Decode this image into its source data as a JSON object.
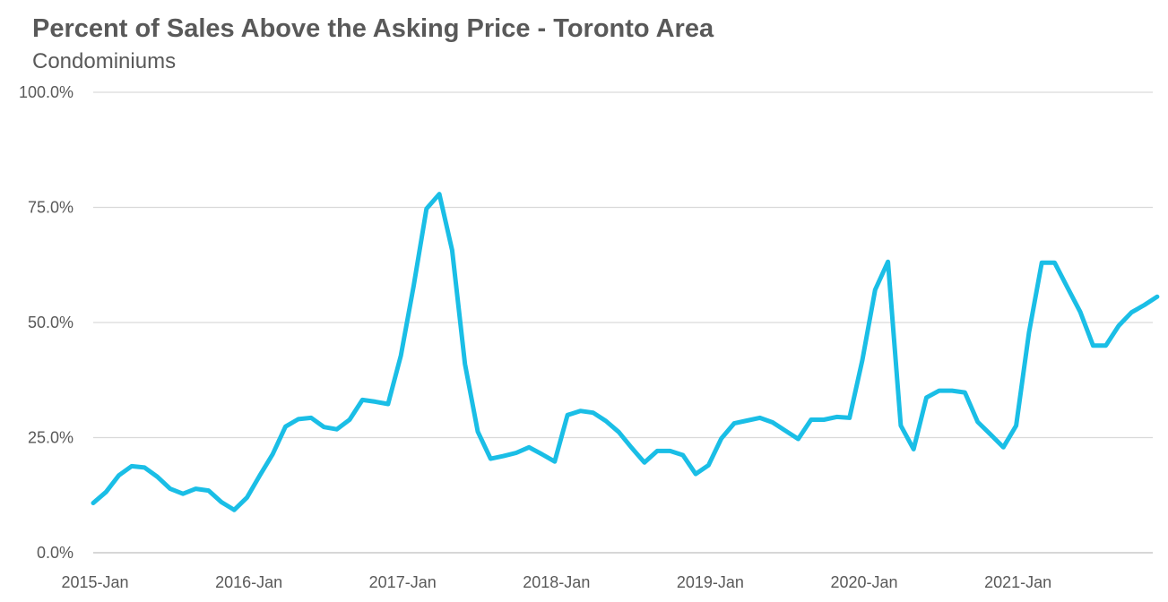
{
  "chart_data": {
    "type": "line",
    "title": "Percent of Sales Above the Asking Price - Toronto Area",
    "subtitle": "Condominiums",
    "xlabel": "",
    "ylabel": "",
    "ylim": [
      0,
      100
    ],
    "y_ticks": [
      "0.0%",
      "25.0%",
      "50.0%",
      "75.0%",
      "100.0%"
    ],
    "x_ticks": [
      "2015-Jan",
      "2016-Jan",
      "2017-Jan",
      "2018-Jan",
      "2019-Jan",
      "2020-Jan",
      "2021-Jan"
    ],
    "grid": true,
    "legend": "none",
    "line_color": "#1ABEE6",
    "series": [
      {
        "values": [
          10.8,
          13.2,
          16.8,
          18.8,
          18.5,
          16.5,
          13.9,
          12.8,
          13.9,
          13.5,
          11.0,
          9.3,
          12.0,
          16.8,
          21.4,
          27.4,
          29.0,
          29.3,
          27.3,
          26.8,
          28.9,
          33.2,
          32.8,
          32.3,
          42.8,
          58.0,
          74.7,
          77.9,
          65.7,
          41.0,
          26.3,
          20.4,
          21.0,
          21.7,
          22.9,
          21.4,
          19.8,
          29.9,
          30.8,
          30.4,
          28.6,
          26.2,
          22.8,
          19.6,
          22.1,
          22.1,
          21.2,
          17.1,
          19.0,
          24.8,
          28.1,
          28.7,
          29.3,
          28.3,
          26.5,
          24.7,
          28.9,
          28.9,
          29.5,
          29.3,
          41.8,
          57.1,
          63.2,
          27.6,
          22.5,
          33.7,
          35.2,
          35.2,
          34.8,
          28.4,
          25.7,
          22.9,
          27.6,
          47.8,
          63.0,
          63.0,
          57.6,
          52.3,
          45.0,
          45.0,
          49.3,
          52.2,
          53.8,
          55.6
        ]
      }
    ]
  }
}
